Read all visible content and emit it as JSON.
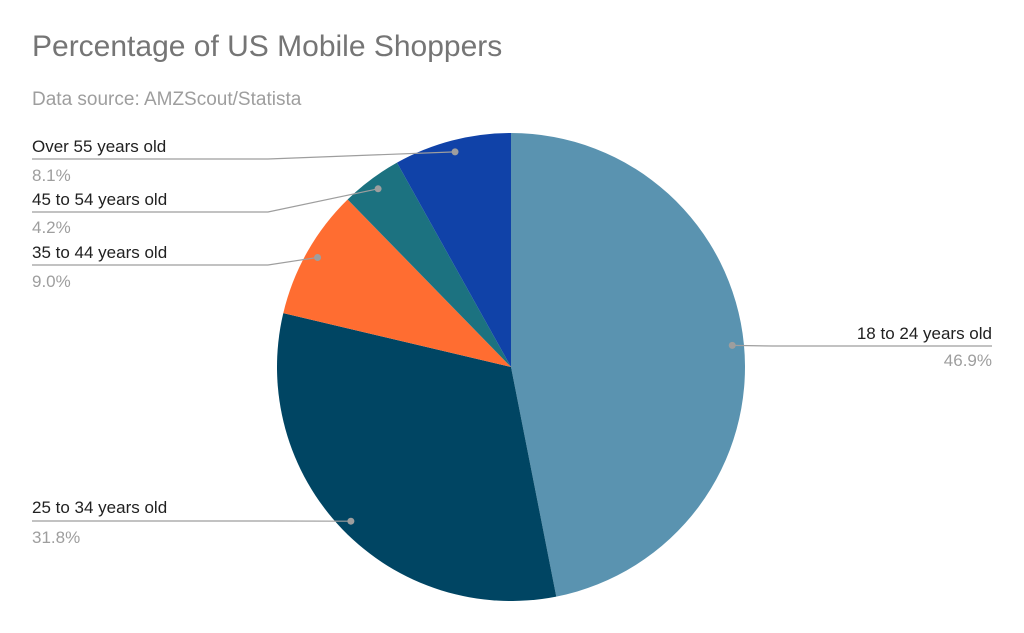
{
  "chart_data": {
    "type": "pie",
    "title": "Percentage of US Mobile Shoppers",
    "subtitle": "Data source: AMZScout/Statista",
    "start_angle": "12 o'clock, clockwise",
    "slices": [
      {
        "label": "18 to 24 years old",
        "value": 46.9,
        "value_label": "46.9%",
        "color": "#5a93b0"
      },
      {
        "label": "25 to 34 years old",
        "value": 31.8,
        "value_label": "31.8%",
        "color": "#004563"
      },
      {
        "label": "35 to 44 years old",
        "value": 9.0,
        "value_label": "9.0%",
        "color": "#ff6d31"
      },
      {
        "label": "45 to 54 years old",
        "value": 4.2,
        "value_label": "4.2%",
        "color": "#1c7280"
      },
      {
        "label": "Over 55 years old",
        "value": 8.1,
        "value_label": "8.1%",
        "color": "#1042a8"
      }
    ],
    "colors": {
      "leader_line": "#9e9e9e",
      "leader_dot": "#9e9e9e"
    }
  }
}
